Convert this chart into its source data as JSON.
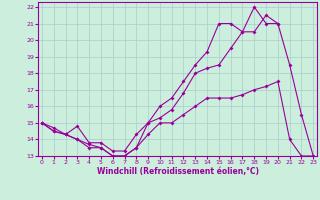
{
  "xlabel": "Windchill (Refroidissement éolien,°C)",
  "background_color": "#cceedd",
  "grid_color": "#aacccc",
  "line_color": "#990099",
  "x_min": 0,
  "x_max": 23,
  "y_min": 13,
  "y_max": 22,
  "line1_x": [
    0,
    1,
    2,
    3,
    4,
    5,
    6,
    7,
    8,
    9,
    10,
    11,
    12,
    13,
    14,
    15,
    16,
    17,
    18,
    19,
    20,
    21,
    22,
    23
  ],
  "line1_y": [
    15.0,
    14.7,
    14.3,
    14.0,
    13.7,
    13.5,
    13.0,
    13.0,
    13.5,
    14.3,
    15.0,
    15.0,
    15.5,
    16.0,
    16.5,
    16.5,
    16.5,
    16.7,
    17.0,
    17.2,
    17.5,
    14.0,
    13.0,
    13.0
  ],
  "line2_x": [
    0,
    1,
    2,
    3,
    4,
    5,
    6,
    7,
    8,
    9,
    10,
    11,
    12,
    13,
    14,
    15,
    16,
    17,
    18,
    19,
    20
  ],
  "line2_y": [
    15.0,
    14.5,
    14.3,
    14.0,
    13.5,
    13.5,
    13.0,
    13.0,
    13.5,
    15.0,
    16.0,
    16.5,
    17.5,
    18.5,
    19.3,
    21.0,
    21.0,
    20.5,
    22.0,
    21.0,
    21.0
  ],
  "line3_x": [
    0,
    1,
    2,
    3,
    4,
    5,
    6,
    7,
    8,
    9,
    10,
    11,
    12,
    13,
    14,
    15,
    16,
    17,
    18,
    19,
    20,
    21,
    22,
    23
  ],
  "line3_y": [
    15.0,
    14.5,
    14.3,
    14.8,
    13.8,
    13.8,
    13.3,
    13.3,
    14.3,
    15.0,
    15.3,
    15.8,
    16.8,
    18.0,
    18.3,
    18.5,
    19.5,
    20.5,
    20.5,
    21.5,
    21.0,
    18.5,
    15.5,
    13.0
  ]
}
